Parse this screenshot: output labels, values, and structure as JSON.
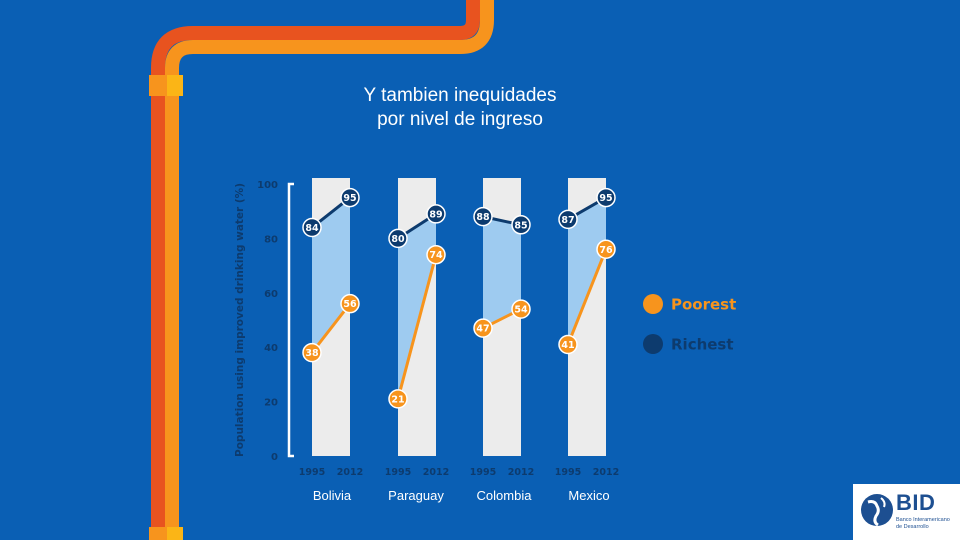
{
  "title_line1": "Y tambien inequidades",
  "title_line2": "por nivel de ingreso",
  "colors": {
    "background": "#0a5fb4",
    "poorest": "#f7941d",
    "richest": "#0d3b6e",
    "band_fill": "#9ecbf0",
    "column_bg": "#ececec",
    "pipe_orange": "#f7941d",
    "pipe_red": "#e8531f",
    "pipe_yellow": "#fbb516"
  },
  "logo": {
    "name": "BID",
    "subtitle_line1": "Banco Interamericano",
    "subtitle_line2": "de Desarrollo"
  },
  "chart_data": {
    "type": "line",
    "title": "",
    "ylabel": "Population using improved drinking water (%)",
    "ylim": [
      0,
      100
    ],
    "yticks": [
      "0",
      "20",
      "40",
      "60",
      "80",
      "100"
    ],
    "x": [
      "1995",
      "2012"
    ],
    "legend_position": "right",
    "countries": [
      {
        "name": "Bolivia",
        "poorest": [
          38,
          56
        ],
        "richest": [
          84,
          95
        ]
      },
      {
        "name": "Paraguay",
        "poorest": [
          21,
          74
        ],
        "richest": [
          80,
          89
        ]
      },
      {
        "name": "Colombia",
        "poorest": [
          47,
          54
        ],
        "richest": [
          88,
          85
        ]
      },
      {
        "name": "Mexico",
        "poorest": [
          41,
          76
        ],
        "richest": [
          87,
          95
        ]
      }
    ],
    "series": [
      {
        "name": "Poorest",
        "color": "#f7941d"
      },
      {
        "name": "Richest",
        "color": "#0d3b6e"
      }
    ]
  }
}
